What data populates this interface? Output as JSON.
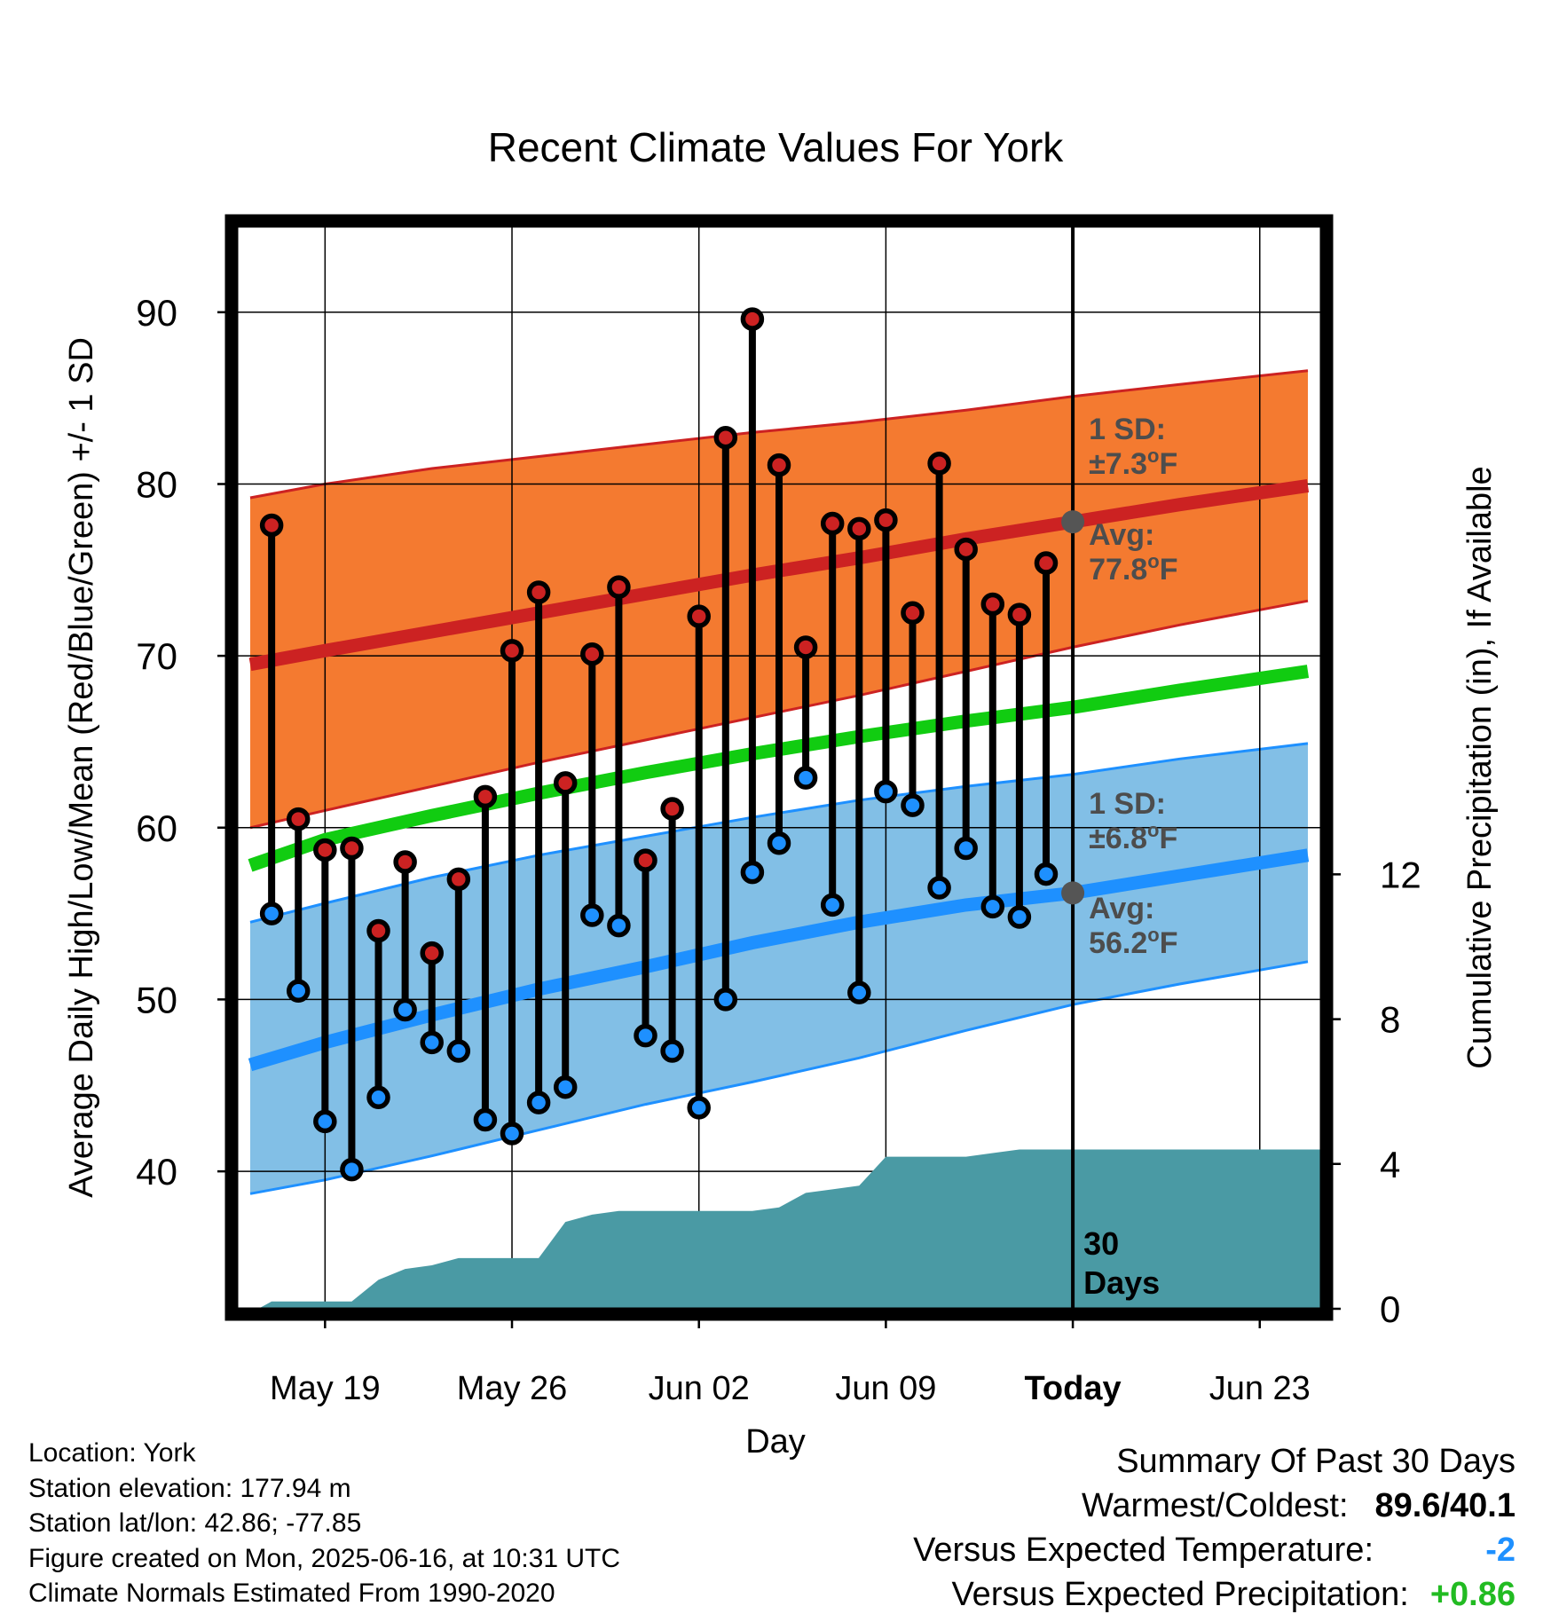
{
  "chart_data": {
    "type": "line",
    "title": "Recent Climate Values For York",
    "xlabel": "Day",
    "ylabel": "Average Daily High/Low/Mean (Red/Blue/Green) +/- 1 SD",
    "y2label": "Cumulative Precipitation (in), If Available",
    "ylim": [
      32,
      95
    ],
    "y2lim": [
      0,
      29.9
    ],
    "yticks": [
      40,
      50,
      60,
      70,
      80,
      90
    ],
    "y2ticks": [
      0,
      4,
      8,
      12
    ],
    "xlim": [
      -3.3,
      37.3
    ],
    "xticks": [
      {
        "day": 0,
        "label": "May 19",
        "bold": false
      },
      {
        "day": 7,
        "label": "May 26",
        "bold": false
      },
      {
        "day": 14,
        "label": "Jun 02",
        "bold": false
      },
      {
        "day": 21,
        "label": "Jun 09",
        "bold": false
      },
      {
        "day": 28,
        "label": "Today",
        "bold": true
      },
      {
        "day": 35,
        "label": "Jun 23",
        "bold": false
      }
    ],
    "today_day": 28,
    "today_annotation": [
      "30",
      "Days"
    ],
    "normals": {
      "days": [
        -2.8,
        0,
        4,
        8,
        12,
        16,
        20,
        24,
        28,
        32,
        36.8
      ],
      "high_mean": [
        69.5,
        70.3,
        71.4,
        72.5,
        73.6,
        74.7,
        75.7,
        76.8,
        77.8,
        78.8,
        79.9
      ],
      "high_upper": [
        79.2,
        80.0,
        80.9,
        81.6,
        82.3,
        83.0,
        83.6,
        84.3,
        85.1,
        85.8,
        86.6
      ],
      "high_lower": [
        60.0,
        61.0,
        62.4,
        63.8,
        65.1,
        66.4,
        67.7,
        69.1,
        70.5,
        71.8,
        73.2
      ],
      "mean_mean": [
        57.8,
        59.3,
        60.7,
        62.0,
        63.2,
        64.3,
        65.3,
        66.2,
        67.0,
        68.0,
        69.1
      ],
      "low_mean": [
        46.2,
        47.5,
        49.1,
        50.6,
        51.9,
        53.3,
        54.5,
        55.5,
        56.2,
        57.2,
        58.4
      ],
      "low_upper": [
        54.5,
        55.6,
        57.1,
        58.4,
        59.5,
        60.6,
        61.6,
        62.4,
        63.1,
        64.0,
        64.9
      ],
      "low_lower": [
        38.7,
        39.5,
        40.9,
        42.4,
        43.9,
        45.2,
        46.6,
        48.2,
        49.7,
        50.9,
        52.2
      ]
    },
    "series": [
      {
        "name": "High",
        "days": [
          -2,
          -1,
          0,
          1,
          2,
          3,
          4,
          5,
          6,
          7,
          8,
          9,
          10,
          11,
          12,
          13,
          14,
          15,
          16,
          17,
          18,
          19,
          20,
          21,
          22,
          23,
          24,
          25,
          26,
          27
        ],
        "values": [
          77.6,
          60.5,
          58.7,
          58.8,
          54.0,
          58.0,
          52.7,
          57.0,
          61.8,
          70.3,
          73.7,
          62.6,
          70.1,
          74.0,
          58.1,
          61.1,
          72.3,
          82.7,
          89.6,
          81.1,
          70.5,
          77.7,
          77.4,
          77.9,
          72.5,
          81.2,
          76.2,
          73.0,
          72.4,
          75.4
        ]
      },
      {
        "name": "Low",
        "days": [
          -2,
          -1,
          0,
          1,
          2,
          3,
          4,
          5,
          6,
          7,
          8,
          9,
          10,
          11,
          12,
          13,
          14,
          15,
          16,
          17,
          18,
          19,
          20,
          21,
          22,
          23,
          24,
          25,
          26,
          27
        ],
        "values": [
          55.0,
          50.5,
          42.9,
          40.1,
          44.3,
          49.4,
          47.5,
          47.0,
          43.0,
          42.2,
          44.0,
          44.9,
          54.9,
          54.3,
          47.9,
          47.0,
          43.7,
          50.0,
          57.4,
          59.1,
          62.9,
          55.5,
          50.4,
          62.1,
          61.3,
          56.5,
          58.8,
          55.4,
          54.8,
          57.3
        ]
      }
    ],
    "precip": {
      "days": [
        -2.5,
        -2,
        0,
        1,
        2,
        3,
        4,
        5,
        6,
        7,
        8,
        9,
        10,
        11,
        12,
        13,
        14,
        15,
        16,
        17,
        18,
        19,
        20,
        21,
        22,
        23,
        24,
        25,
        26,
        27,
        28,
        37.3
      ],
      "values": [
        0.0,
        0.2,
        0.2,
        0.2,
        0.8,
        1.1,
        1.2,
        1.4,
        1.4,
        1.4,
        1.4,
        2.4,
        2.6,
        2.7,
        2.7,
        2.7,
        2.7,
        2.7,
        2.7,
        2.8,
        3.2,
        3.3,
        3.4,
        4.2,
        4.2,
        4.2,
        4.2,
        4.3,
        4.4,
        4.4,
        4.4,
        4.4
      ]
    },
    "annotations": {
      "high_sd": [
        "1 SD:",
        "±7.3°F"
      ],
      "high_avg": [
        "Avg:",
        "77.8°F"
      ],
      "low_sd": [
        "1 SD:",
        "±6.8°F"
      ],
      "low_avg": [
        "Avg:",
        "56.2°F"
      ],
      "today_high_avg": 77.8,
      "today_low_avg": 56.2
    },
    "colors": {
      "high_band": "#f47a30",
      "high_line": "#cc2222",
      "mean_line": "#11cc11",
      "low_band": "#82bfe6",
      "low_line": "#1e90ff",
      "precip_fill": "#4a9aa4",
      "high_dot": "#cc2222",
      "low_dot": "#1e90ff",
      "annotation_text": "#4d4d4d"
    },
    "grid": true
  },
  "footer": {
    "lines": [
      "Location: York",
      "Station elevation: 177.94 m",
      "Station lat/lon: 42.86; -77.85",
      "Figure created on Mon, 2025-06-16, at 10:31 UTC",
      "Climate Normals Estimated From 1990-2020"
    ]
  },
  "summary": {
    "title": "Summary Of Past 30 Days",
    "warmest_label": "Warmest/Coldest:",
    "warmest_value": "89.6/40.1",
    "temp_label": "Versus Expected Temperature:",
    "temp_value": "-2",
    "temp_color": "#1e90ff",
    "precip_label": "Versus Expected Precipitation:",
    "precip_value": "+0.86",
    "precip_color": "#22bb22"
  }
}
